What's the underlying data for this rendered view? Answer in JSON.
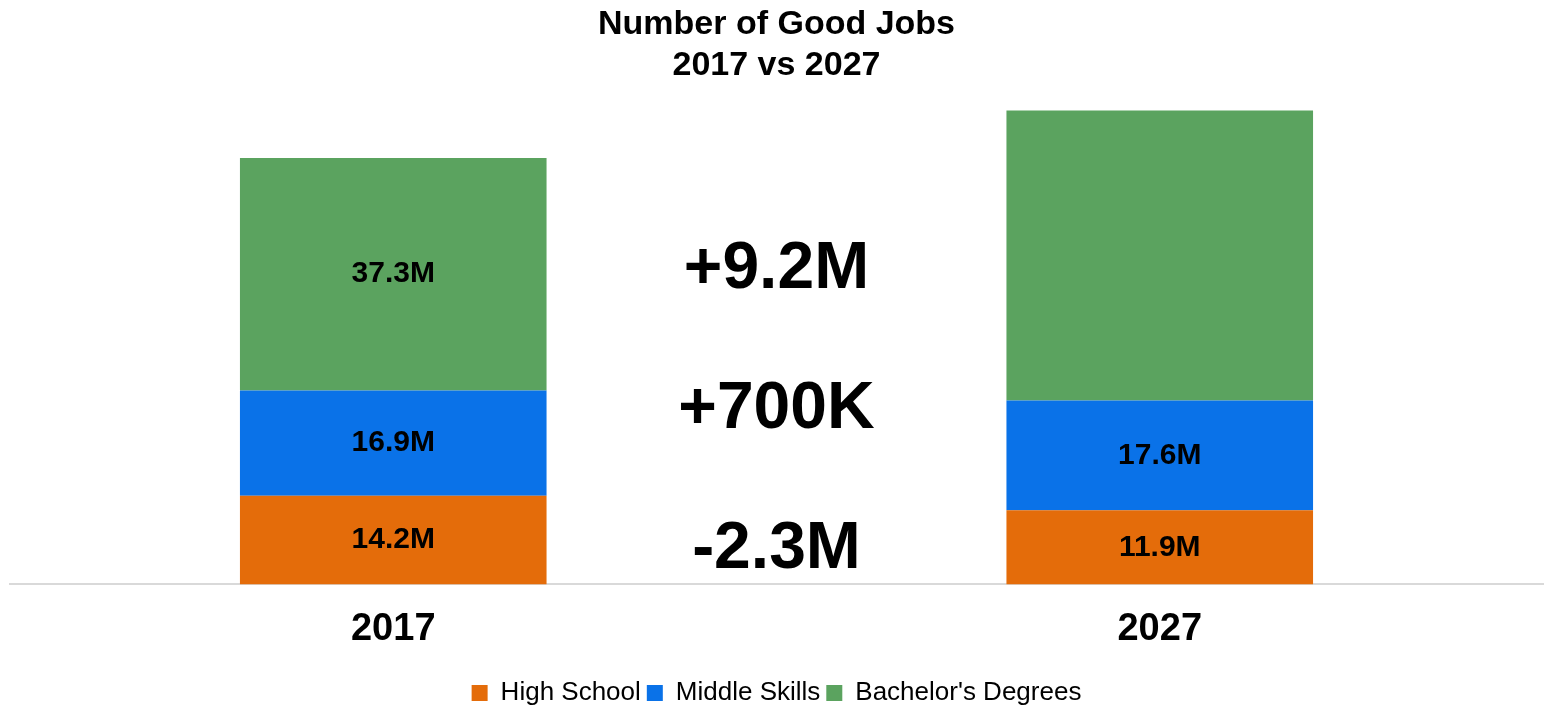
{
  "chart_data": {
    "type": "bar",
    "title": "Number of Good Jobs\n2017 vs 2027",
    "categories": [
      "2017",
      "2027"
    ],
    "stacked": true,
    "series": [
      {
        "name": "High School",
        "color": "#e46c0a",
        "values": [
          14.2,
          11.9
        ],
        "value_labels": [
          "14.2M",
          "11.9M"
        ]
      },
      {
        "name": "Middle Skills",
        "color": "#0a72e8",
        "values": [
          16.9,
          17.6
        ],
        "value_labels": [
          "16.9M",
          "17.6M"
        ]
      },
      {
        "name": "Bachelor's Degrees",
        "color": "#5ba35f",
        "values": [
          37.3,
          46.5
        ],
        "value_labels": [
          "37.3M",
          null
        ]
      }
    ],
    "annotations": [
      "+9.2M",
      "+700K",
      "-2.3M"
    ],
    "grid": false,
    "legend": "bottom"
  }
}
